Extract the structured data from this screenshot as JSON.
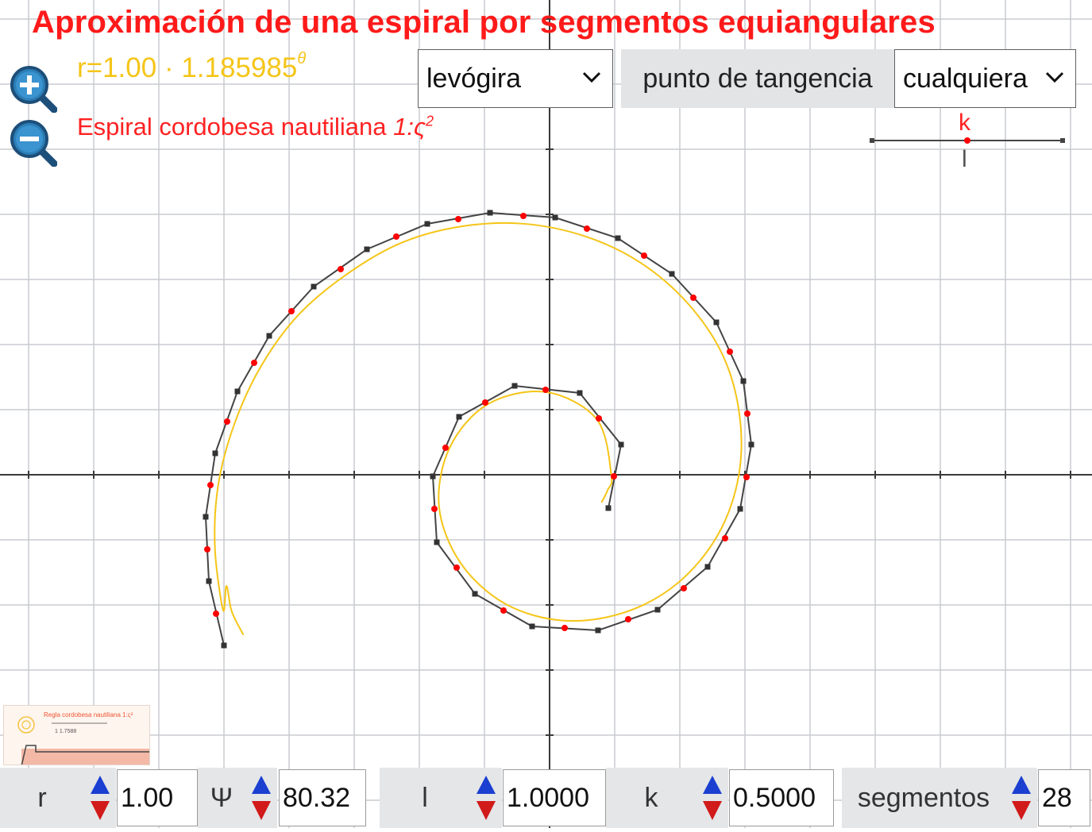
{
  "header": {
    "title": "Aproximación de una espiral por segmentos equiangulares",
    "formula_base": "r=1.00 · 1.185985",
    "formula_exp": "θ",
    "subtitle_text": "Espiral cordobesa nautiliana ",
    "subtitle_ratio": "1:ς",
    "subtitle_exp": "2"
  },
  "controls": {
    "direction_select": "levógira",
    "tangent_label": "punto de tangencia",
    "tangent_select": "cualquiera"
  },
  "slider": {
    "k_label": "k",
    "l_label": "l",
    "value": 0.5
  },
  "bottom": {
    "r_label": "r",
    "r_value": "1.00",
    "psi_label": "Ψ",
    "psi_value": "80.32",
    "l_label": "l",
    "l_value": "1.0000",
    "k_label": "k",
    "k_value": "0.5000",
    "segments_label": "segmentos",
    "segments_value": "28"
  },
  "icons": {
    "zoom_in": "zoom-in-icon",
    "zoom_out": "zoom-out-icon",
    "spin_up": "triangle-up-icon",
    "spin_down": "triangle-down-icon",
    "dropdown": "chevron-down-icon"
  },
  "colors": {
    "title": "#ff1a1a",
    "formula": "#f5c518",
    "spiral": "#f5c518",
    "polyline": "#444444",
    "vertex": "#333333",
    "tangent_point": "#ff0000",
    "grid": "#c8ccd0",
    "axis": "#3a3a3a",
    "spin_up": "#1a3fd1",
    "spin_down": "#d11a1a"
  },
  "thumbnail": {
    "title": "Regla cordobesa nautiliana 1:ς²",
    "caption": "1 1.7588"
  }
}
